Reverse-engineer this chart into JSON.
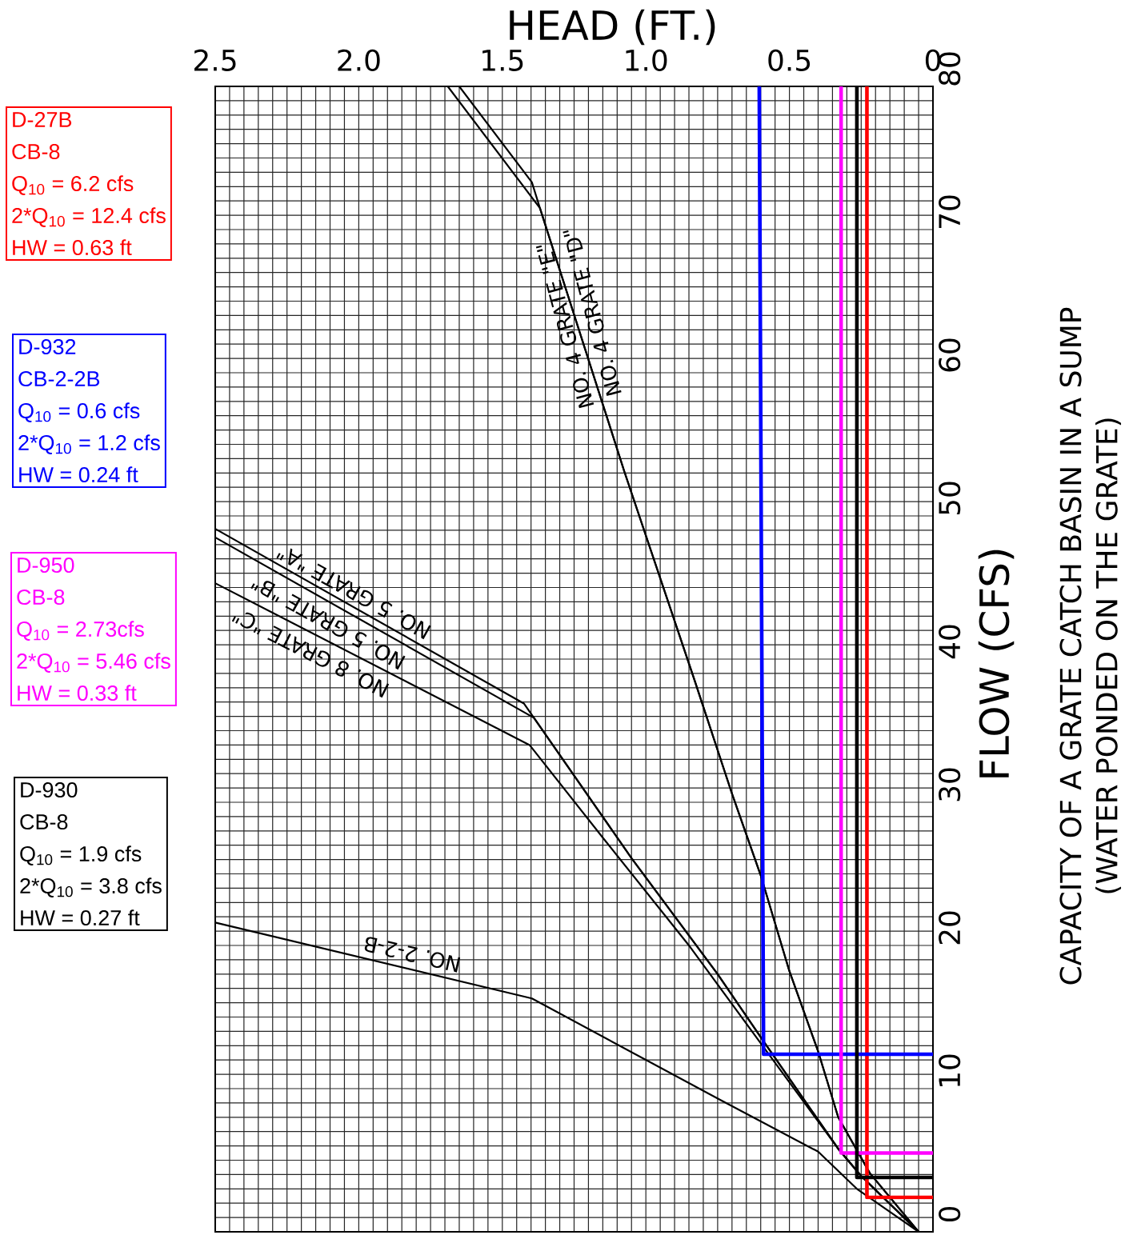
{
  "chart_data": {
    "type": "line",
    "title": "CAPACITY OF A GRATE CATCH BASIN IN A SUMP",
    "subtitle": "(WATER PONDED ON THE GRATE)",
    "xlabel": "HEAD (FT.)",
    "ylabel": "FLOW (CFS)",
    "xlim": [
      2.5,
      0
    ],
    "ylim": [
      0,
      80
    ],
    "xticks": [
      0,
      {
        "value": 0.05,
        "label": null
      },
      {
        "value": 0.1,
        "label": null
      },
      {
        "value": 0.15,
        "label": null
      },
      {
        "value": 0.2,
        "label": null
      },
      {
        "value": 0.25,
        "label": null
      },
      {
        "value": 0.3,
        "label": null
      },
      {
        "value": 0.35,
        "label": null
      },
      {
        "value": 0.4,
        "label": null
      },
      {
        "value": 0.45,
        "label": null
      },
      0.5,
      {
        "value": 0.55,
        "label": null
      },
      {
        "value": 0.6,
        "label": null
      },
      {
        "value": 0.65,
        "label": null
      },
      {
        "value": 0.7,
        "label": null
      },
      {
        "value": 0.75,
        "label": null
      },
      {
        "value": 0.8,
        "label": null
      },
      {
        "value": 0.85,
        "label": null
      },
      {
        "value": 0.9,
        "label": null
      },
      {
        "value": 0.95,
        "label": null
      },
      {
        "value": 1,
        "label": "1.0"
      },
      {
        "value": 1.05,
        "label": null
      },
      {
        "value": 1.1,
        "label": null
      },
      {
        "value": 1.15,
        "label": null
      },
      {
        "value": 1.2,
        "label": null
      },
      {
        "value": 1.25,
        "label": null
      },
      {
        "value": 1.3,
        "label": null
      },
      {
        "value": 1.35,
        "label": null
      },
      {
        "value": 1.4,
        "label": null
      },
      {
        "value": 1.45,
        "label": null
      },
      1.5,
      {
        "value": 1.55,
        "label": null
      },
      {
        "value": 1.6,
        "label": null
      },
      {
        "value": 1.65,
        "label": null
      },
      {
        "value": 1.7,
        "label": null
      },
      {
        "value": 1.75,
        "label": null
      },
      {
        "value": 1.8,
        "label": null
      },
      {
        "value": 1.85,
        "label": null
      },
      {
        "value": 1.9,
        "label": null
      },
      {
        "value": 1.95,
        "label": null
      },
      {
        "value": 2,
        "label": "2.0"
      },
      {
        "value": 2.05,
        "label": null
      },
      {
        "value": 2.1,
        "label": null
      },
      {
        "value": 2.15,
        "label": null
      },
      {
        "value": 2.2,
        "label": null
      },
      {
        "value": 2.25,
        "label": null
      },
      {
        "value": 2.3,
        "label": null
      },
      {
        "value": 2.35,
        "label": null
      },
      {
        "value": 2.4,
        "label": null
      },
      {
        "value": 2.45,
        "label": null
      },
      2.5
    ],
    "yticks": [
      0,
      {
        "value": 1,
        "label": null
      },
      {
        "value": 2,
        "label": null
      },
      {
        "value": 3,
        "label": null
      },
      {
        "value": 4,
        "label": null
      },
      {
        "value": 5,
        "label": null
      },
      {
        "value": 6,
        "label": null
      },
      {
        "value": 7,
        "label": null
      },
      {
        "value": 8,
        "label": null
      },
      {
        "value": 9,
        "label": null
      },
      10,
      {
        "value": 11,
        "label": null
      },
      {
        "value": 12,
        "label": null
      },
      {
        "value": 13,
        "label": null
      },
      {
        "value": 14,
        "label": null
      },
      {
        "value": 15,
        "label": null
      },
      {
        "value": 16,
        "label": null
      },
      {
        "value": 17,
        "label": null
      },
      {
        "value": 18,
        "label": null
      },
      {
        "value": 19,
        "label": null
      },
      20,
      {
        "value": 21,
        "label": null
      },
      {
        "value": 22,
        "label": null
      },
      {
        "value": 23,
        "label": null
      },
      {
        "value": 24,
        "label": null
      },
      {
        "value": 25,
        "label": null
      },
      {
        "value": 26,
        "label": null
      },
      {
        "value": 27,
        "label": null
      },
      {
        "value": 28,
        "label": null
      },
      {
        "value": 29,
        "label": null
      },
      30,
      {
        "value": 31,
        "label": null
      },
      {
        "value": 32,
        "label": null
      },
      {
        "value": 33,
        "label": null
      },
      {
        "value": 34,
        "label": null
      },
      {
        "value": 35,
        "label": null
      },
      {
        "value": 36,
        "label": null
      },
      {
        "value": 37,
        "label": null
      },
      {
        "value": 38,
        "label": null
      },
      {
        "value": 39,
        "label": null
      },
      40,
      {
        "value": 41,
        "label": null
      },
      {
        "value": 42,
        "label": null
      },
      {
        "value": 43,
        "label": null
      },
      {
        "value": 44,
        "label": null
      },
      {
        "value": 45,
        "label": null
      },
      {
        "value": 46,
        "label": null
      },
      {
        "value": 47,
        "label": null
      },
      {
        "value": 48,
        "label": null
      },
      {
        "value": 49,
        "label": null
      },
      50,
      {
        "value": 51,
        "label": null
      },
      {
        "value": 52,
        "label": null
      },
      {
        "value": 53,
        "label": null
      },
      {
        "value": 54,
        "label": null
      },
      {
        "value": 55,
        "label": null
      },
      {
        "value": 56,
        "label": null
      },
      {
        "value": 57,
        "label": null
      },
      {
        "value": 58,
        "label": null
      },
      {
        "value": 59,
        "label": null
      },
      60,
      {
        "value": 61,
        "label": null
      },
      {
        "value": 62,
        "label": null
      },
      {
        "value": 63,
        "label": null
      },
      {
        "value": 64,
        "label": null
      },
      {
        "value": 65,
        "label": null
      },
      {
        "value": 66,
        "label": null
      },
      {
        "value": 67,
        "label": null
      },
      {
        "value": 68,
        "label": null
      },
      {
        "value": 69,
        "label": null
      },
      70,
      {
        "value": 71,
        "label": null
      },
      {
        "value": 72,
        "label": null
      },
      {
        "value": 73,
        "label": null
      },
      {
        "value": 74,
        "label": null
      },
      {
        "value": 75,
        "label": null
      },
      {
        "value": 76,
        "label": null
      },
      {
        "value": 77,
        "label": null
      },
      {
        "value": 78,
        "label": null
      },
      {
        "value": 79,
        "label": null
      },
      80
    ],
    "grid": true,
    "marker": "none",
    "line_style": "solid",
    "series": [
      {
        "color": "#000000",
        "x": [
          1.69,
          1.369,
          1.075,
          0.83,
          0.7,
          0.6,
          0.5,
          0.4,
          0.33,
          0.22,
          0.05
        ],
        "values": [
          80,
          71.5,
          53.1,
          38.5,
          30.6,
          24.9,
          18.2,
          12.6,
          8.0,
          4.1,
          0
        ]
      },
      {
        "color": "#000000",
        "x": [
          1.65,
          1.397,
          1.369,
          1.075,
          0.83,
          0.7,
          0.6,
          0.5,
          0.4,
          0.33,
          0.22,
          0.05
        ],
        "values": [
          80,
          73.3,
          71.5,
          53.1,
          38.5,
          30.6,
          24.9,
          18.2,
          12.6,
          8.0,
          4.1,
          0
        ]
      },
      {
        "color": "#000000",
        "x": [
          2.5,
          1.425,
          1.39,
          1.05,
          0.75,
          0.59,
          0.33,
          0.25,
          0.05
        ],
        "values": [
          49.1,
          36.9,
          35.9,
          26.1,
          18.0,
          13.3,
          5.8,
          3.9,
          0
        ]
      },
      {
        "color": "#000000",
        "x": [
          2.5,
          1.39,
          1.05,
          0.75,
          0.59,
          0.33,
          0.25,
          0.05
        ],
        "values": [
          48.5,
          35.9,
          26.1,
          18.0,
          13.3,
          5.8,
          3.9,
          0
        ]
      },
      {
        "color": "#000000",
        "x": [
          2.5,
          1.405,
          1.145,
          0.846,
          0.612,
          0.33,
          0.25,
          0.05
        ],
        "values": [
          45.3,
          34.0,
          27.4,
          19.9,
          13.5,
          5.8,
          3.9,
          0
        ]
      },
      {
        "color": "#000000",
        "x": [
          2.5,
          1.397,
          0.74,
          0.4,
          0.265,
          0.05
        ],
        "values": [
          21.6,
          16.3,
          9.2,
          5.6,
          3.0,
          0
        ]
      },
      {
        "color": "#ff0000",
        "x": [
          0.23,
          0.23,
          0
        ],
        "values": [
          80,
          2.4,
          2.4
        ]
      },
      {
        "color": "#0000ff",
        "x": [
          0.605,
          0.59,
          0
        ],
        "values": [
          80,
          12.4,
          12.4
        ]
      },
      {
        "color": "#ff00ff",
        "x": [
          0.32,
          0.32,
          0
        ],
        "values": [
          80,
          5.5,
          5.5
        ]
      },
      {
        "color": "#000000",
        "x": [
          0.265,
          0.265,
          0
        ],
        "values": [
          80,
          3.8,
          3.8
        ]
      }
    ],
    "annotations": [
      "D-27B",
      "CB-8",
      "Q$_{10}$ = 6.2 cfs",
      "2*Q$_{10}$ = 12.4 cfs",
      "HW = 0.63 ft",
      "D-932",
      "CB-2-2B",
      "Q$_{10}$ = 0.6 cfs",
      "2*Q$_{10}$ = 1.2 cfs",
      "HW = 0.24 ft",
      "D-950",
      "CB-8",
      "Q$_{10}$ = 2.73cfs",
      "2*Q$_{10}$ = 5.46 cfs",
      "HW = 0.33 ft",
      "D-930",
      "CB-8",
      "Q$_{10}$ = 1.9 cfs",
      "2*Q$_{10}$ = 3.8 cfs",
      "HW = 0.27 ft",
      "NO. 4 GRATE \"E\"",
      "NO. 4 GRATE \"D\"",
      "NO. 5 GRATE \"A\"",
      "NO. 5 GRATE \"B\"",
      "NO. 8 GRATE \"C\"",
      "NO. 2-2-B"
    ]
  }
}
